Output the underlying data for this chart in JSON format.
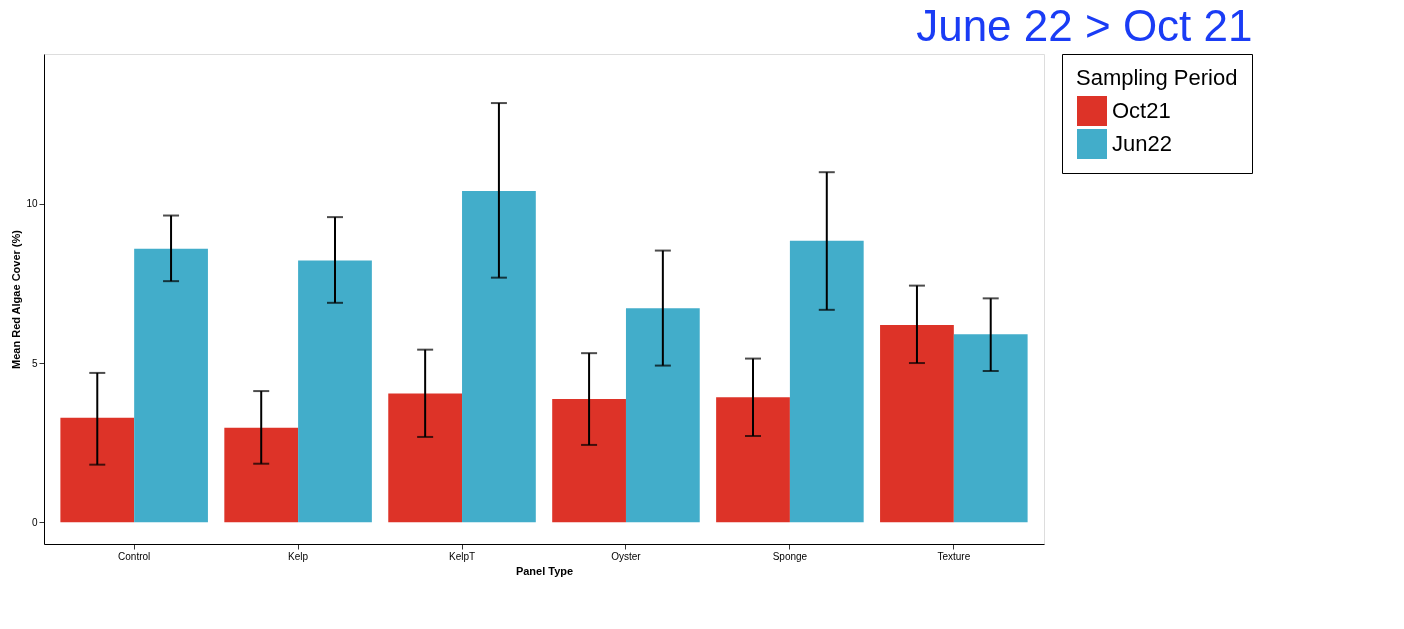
{
  "chart_data": {
    "type": "bar",
    "xlabel": "Panel Type",
    "ylabel": "Mean Red Algae Cover (%)",
    "legend_title": "Sampling Period",
    "annotations": [
      "June 22 > Oct 21"
    ],
    "categories": [
      "Control",
      "Kelp",
      "KelpT",
      "Oyster",
      "Sponge",
      "Texture"
    ],
    "series": [
      {
        "name": "Oct21",
        "color": "#dd3328",
        "values": [
          3.28,
          2.97,
          4.04,
          3.87,
          3.93,
          6.19
        ],
        "errors": [
          [
            1.81,
            4.69
          ],
          [
            1.84,
            4.12
          ],
          [
            2.68,
            5.42
          ],
          [
            2.43,
            5.31
          ],
          [
            2.71,
            5.14
          ],
          [
            5.0,
            7.43
          ]
        ]
      },
      {
        "name": "Jun22",
        "color": "#42adca",
        "values": [
          8.59,
          8.22,
          10.4,
          6.72,
          8.84,
          5.9
        ],
        "errors": [
          [
            7.57,
            9.63
          ],
          [
            6.89,
            9.58
          ],
          [
            7.68,
            13.16
          ],
          [
            4.92,
            8.53
          ],
          [
            6.67,
            10.99
          ],
          [
            4.75,
            7.03
          ]
        ]
      }
    ],
    "ylim": [
      -0.68,
      14.7
    ],
    "yticks": [
      0,
      5,
      10
    ],
    "grid": false,
    "legend": "right"
  }
}
